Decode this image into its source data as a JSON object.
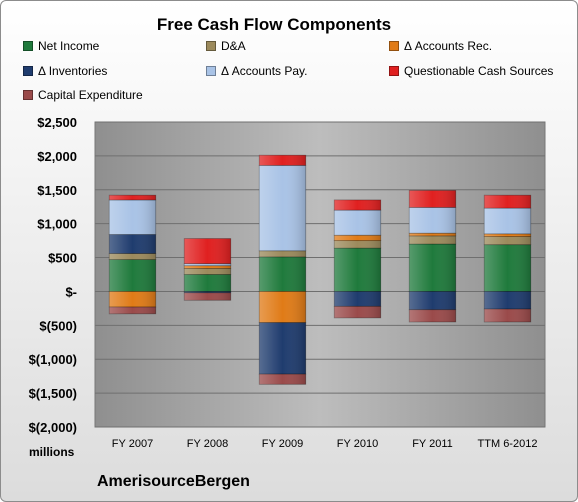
{
  "chart_data": {
    "type": "bar",
    "stacked": true,
    "title": "Free Cash Flow Components",
    "units": "millions",
    "company": "AmerisourceBergen",
    "categories": [
      "FY 2007",
      "FY 2008",
      "FY 2009",
      "FY 2010",
      "FY 2011",
      "TTM 6-2012"
    ],
    "ylim": [
      -2000,
      2500
    ],
    "yticks": [
      2500,
      2000,
      1500,
      1000,
      500,
      0,
      -500,
      -1000,
      -1500,
      -2000
    ],
    "ytick_labels": [
      "$2,500",
      "$2,000",
      "$1,500",
      "$1,000",
      "$500",
      "$-",
      "$(500)",
      "$(1,000)",
      "$(1,500)",
      "$(2,000)"
    ],
    "grid": true,
    "legend_position": "top",
    "series": [
      {
        "name": "Net Income",
        "color": "#1f7a3c",
        "values": [
          470,
          250,
          510,
          640,
          700,
          690
        ]
      },
      {
        "name": "D&A",
        "color": "#9c8a5c",
        "values": [
          90,
          90,
          90,
          110,
          120,
          120
        ]
      },
      {
        "name": "Δ Accounts Rec.",
        "color": "#e07b17",
        "values": [
          -230,
          40,
          -460,
          80,
          40,
          40
        ]
      },
      {
        "name": "Δ Inventories",
        "color": "#1f3c6e",
        "values": [
          280,
          -20,
          -760,
          -220,
          -270,
          -260
        ]
      },
      {
        "name": "Δ Accounts Pay.",
        "color": "#a9c3e6",
        "values": [
          510,
          30,
          1260,
          370,
          380,
          380
        ]
      },
      {
        "name": "Questionable Cash Sources",
        "color": "#e02020",
        "values": [
          70,
          370,
          150,
          150,
          250,
          190
        ]
      },
      {
        "name": "Capital Expenditure",
        "color": "#9a4a4a",
        "values": [
          -100,
          -110,
          -150,
          -170,
          -180,
          -190
        ]
      }
    ]
  }
}
